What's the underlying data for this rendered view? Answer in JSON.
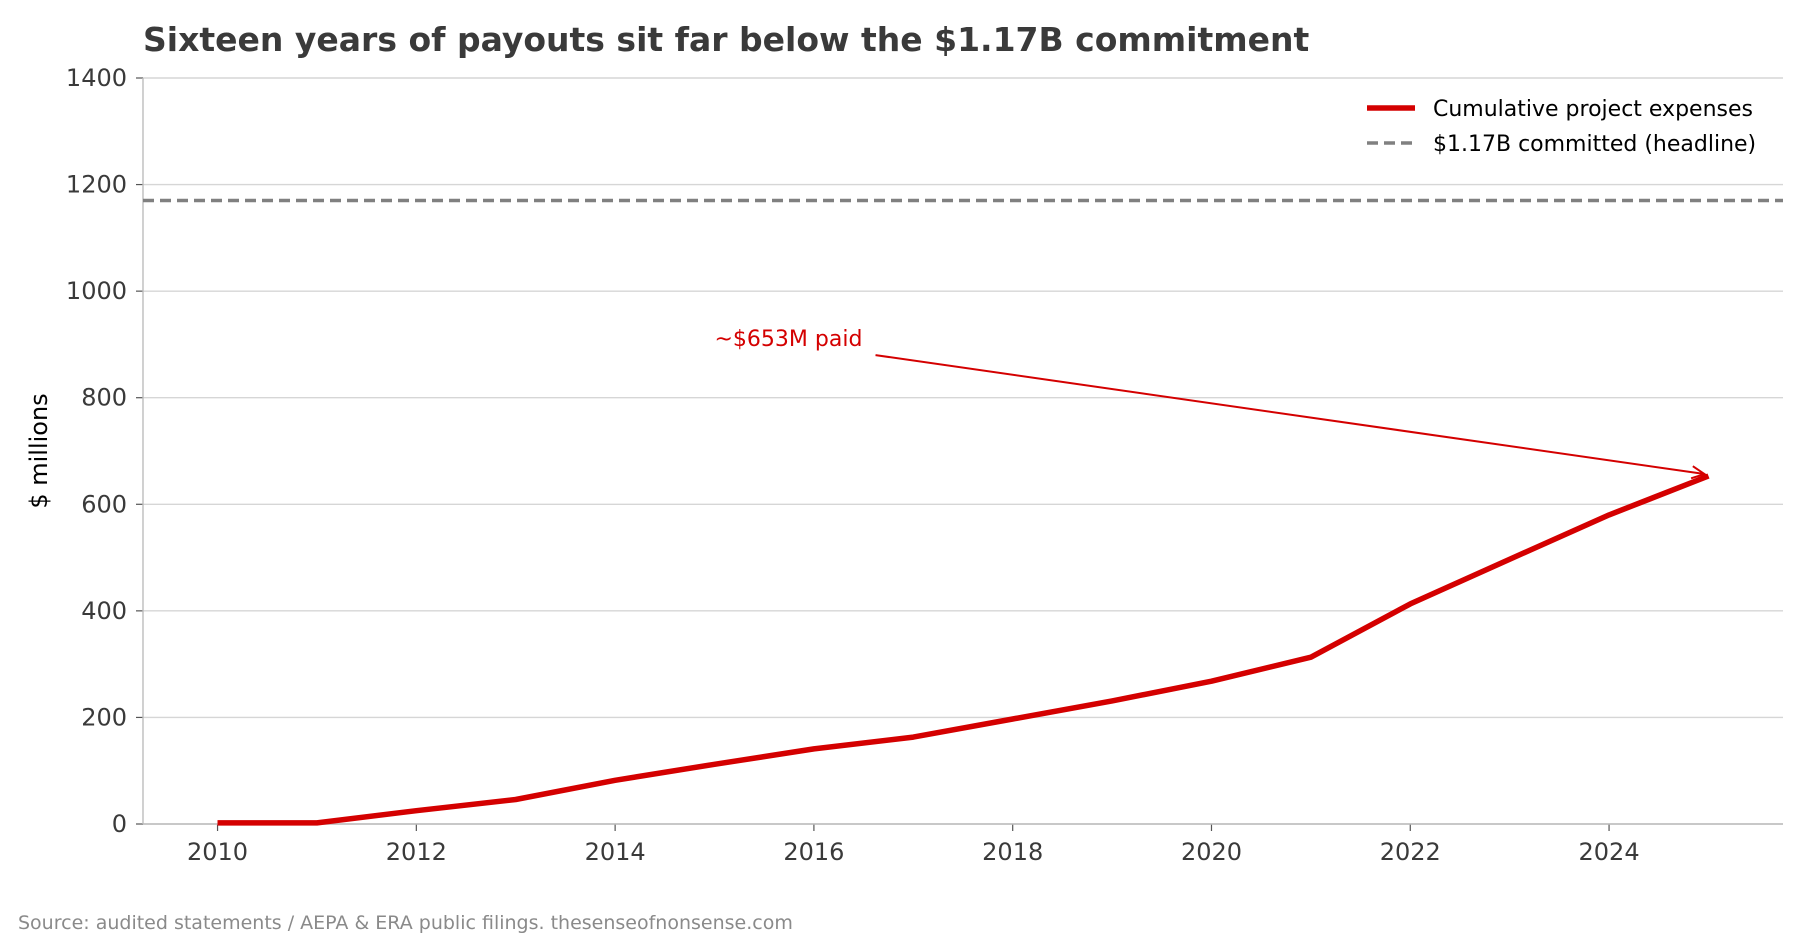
{
  "chart_data": {
    "type": "line",
    "title": "Sixteen years of payouts sit far below the $1.17B commitment",
    "xlabel": "",
    "ylabel": "$ millions",
    "xlim": [
      2009.25,
      2025.75
    ],
    "ylim": [
      0,
      1400
    ],
    "x_ticks": [
      2010,
      2012,
      2014,
      2016,
      2018,
      2020,
      2022,
      2024
    ],
    "y_ticks": [
      0,
      200,
      400,
      600,
      800,
      1000,
      1200,
      1400
    ],
    "grid": "horizontal",
    "legend_position": "top-right",
    "series": [
      {
        "name": "Cumulative project expenses",
        "style": "solid",
        "color": "#d40000",
        "x": [
          2010,
          2011,
          2012,
          2013,
          2014,
          2015,
          2016,
          2017,
          2018,
          2019,
          2020,
          2021,
          2022,
          2023,
          2024,
          2025
        ],
        "y": [
          2,
          2,
          25,
          46,
          82,
          112,
          141,
          163,
          197,
          231,
          268,
          313,
          413,
          497,
          580,
          653
        ]
      },
      {
        "name": "$1.17B committed (headline)",
        "style": "dashed",
        "color": "#808080",
        "type": "hline",
        "value": 1170
      }
    ],
    "annotations": [
      {
        "text": "~$653M paid",
        "color": "#d40000",
        "text_x": 2015,
        "text_y": 910,
        "arrow_to_x": 2025,
        "arrow_to_y": 653
      }
    ]
  },
  "footer": {
    "source": "Source: audited statements / AEPA & ERA public filings. thesenseofnonsense.com"
  }
}
